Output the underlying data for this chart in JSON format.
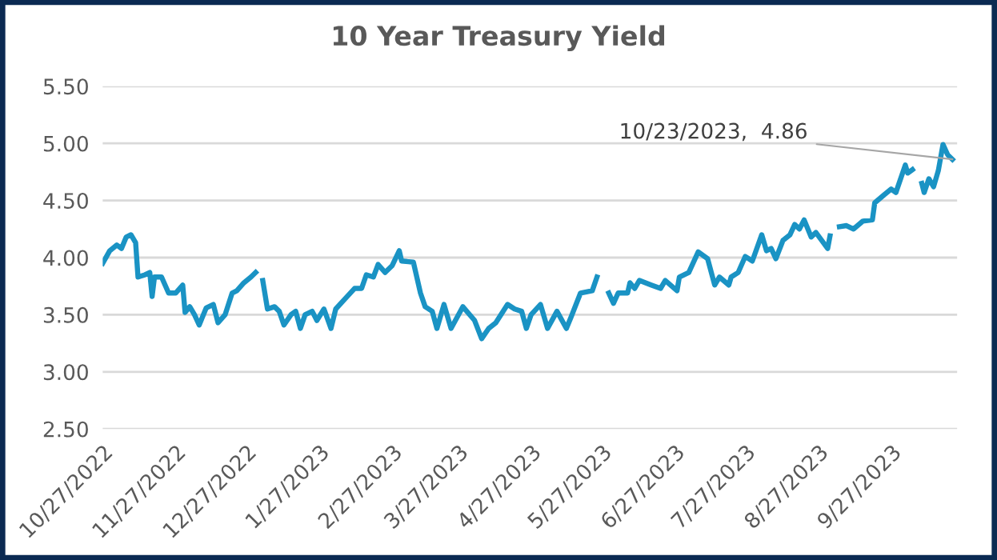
{
  "chart_data": {
    "type": "line",
    "title": "10 Year Treasury Yield",
    "x": [
      "2022-10-27",
      "2022-10-30",
      "2022-11-02",
      "2022-11-04",
      "2022-11-06",
      "2022-11-08",
      "2022-11-10",
      "2022-11-11",
      "2022-11-14",
      "2022-11-16",
      "2022-11-17",
      "2022-11-18",
      "2022-11-21",
      "2022-11-24",
      "2022-11-27",
      "2022-11-30",
      "2022-12-01",
      "2022-12-03",
      "2022-12-05",
      "2022-12-07",
      "2022-12-10",
      "2022-12-13",
      "2022-12-15",
      "2022-12-18",
      "2022-12-21",
      "2022-12-23",
      "2022-12-26",
      "2022-12-29",
      "2022-12-31",
      "2023-01-02",
      "2023-01-03",
      "2023-01-05",
      "2023-01-08",
      "2023-01-10",
      "2023-01-12",
      "2023-01-15",
      "2023-01-17",
      "2023-01-19",
      "2023-01-21",
      "2023-01-24",
      "2023-01-26",
      "2023-01-29",
      "2023-02-01",
      "2023-02-03",
      "2023-02-07",
      "2023-02-11",
      "2023-02-14",
      "2023-02-16",
      "2023-02-19",
      "2023-02-21",
      "2023-02-24",
      "2023-02-27",
      "2023-03-02",
      "2023-03-03",
      "2023-03-08",
      "2023-03-11",
      "2023-03-13",
      "2023-03-16",
      "2023-03-18",
      "2023-03-21",
      "2023-03-24",
      "2023-03-29",
      "2023-04-03",
      "2023-04-06",
      "2023-04-09",
      "2023-04-12",
      "2023-04-17",
      "2023-04-20",
      "2023-04-23",
      "2023-04-25",
      "2023-04-27",
      "2023-05-01",
      "2023-05-04",
      "2023-05-08",
      "2023-05-12",
      "2023-05-14",
      "2023-05-18",
      "2023-05-23",
      "2023-05-25",
      "2023-05-27",
      "2023-05-30",
      "2023-06-01",
      "2023-06-03",
      "2023-06-07",
      "2023-06-08",
      "2023-06-10",
      "2023-06-12",
      "2023-06-17",
      "2023-06-21",
      "2023-06-23",
      "2023-06-28",
      "2023-06-29",
      "2023-07-03",
      "2023-07-07",
      "2023-07-11",
      "2023-07-14",
      "2023-07-16",
      "2023-07-20",
      "2023-07-21",
      "2023-07-24",
      "2023-07-27",
      "2023-07-30",
      "2023-08-03",
      "2023-08-05",
      "2023-08-07",
      "2023-08-09",
      "2023-08-12",
      "2023-08-15",
      "2023-08-17",
      "2023-08-19",
      "2023-08-21",
      "2023-08-24",
      "2023-08-26",
      "2023-08-31",
      "2023-09-01",
      "2023-09-03",
      "2023-09-05",
      "2023-09-08",
      "2023-09-11",
      "2023-09-15",
      "2023-09-19",
      "2023-09-20",
      "2023-09-24",
      "2023-09-27",
      "2023-09-29",
      "2023-10-03",
      "2023-10-04",
      "2023-10-06",
      "2023-10-08",
      "2023-10-10",
      "2023-10-11",
      "2023-10-13",
      "2023-10-15",
      "2023-10-17",
      "2023-10-19",
      "2023-10-21",
      "2023-10-23"
    ],
    "series": [
      {
        "color": "#1a93c4",
        "values": [
          3.95,
          4.06,
          4.11,
          4.08,
          4.18,
          4.2,
          4.13,
          3.83,
          3.85,
          3.87,
          3.66,
          3.83,
          3.83,
          3.69,
          3.69,
          3.76,
          3.52,
          3.57,
          3.5,
          3.41,
          3.56,
          3.59,
          3.43,
          3.5,
          3.69,
          3.71,
          3.78,
          3.83,
          3.87,
          null,
          3.8,
          3.55,
          3.57,
          3.53,
          3.41,
          3.5,
          3.53,
          3.38,
          3.5,
          3.53,
          3.45,
          3.55,
          3.38,
          3.55,
          3.64,
          3.73,
          3.73,
          3.85,
          3.83,
          3.94,
          3.87,
          3.93,
          4.06,
          3.97,
          3.96,
          3.69,
          3.57,
          3.53,
          3.38,
          3.59,
          3.38,
          3.57,
          3.45,
          3.29,
          3.38,
          3.43,
          3.59,
          3.55,
          3.53,
          3.38,
          3.5,
          3.59,
          3.38,
          3.53,
          3.38,
          3.48,
          3.69,
          3.71,
          3.83,
          null,
          3.69,
          3.6,
          3.69,
          3.69,
          3.78,
          3.73,
          3.8,
          3.76,
          3.73,
          3.8,
          3.71,
          3.83,
          3.87,
          4.05,
          3.99,
          3.76,
          3.83,
          3.76,
          3.83,
          3.87,
          4.01,
          3.97,
          4.2,
          4.06,
          4.08,
          3.99,
          4.15,
          4.2,
          4.29,
          4.25,
          4.33,
          4.18,
          4.22,
          4.08,
          4.19,
          null,
          4.27,
          4.28,
          4.25,
          4.32,
          4.33,
          4.48,
          4.55,
          4.6,
          4.57,
          4.81,
          4.74,
          4.77,
          null,
          4.65,
          4.57,
          4.69,
          4.62,
          4.76,
          4.99,
          4.9,
          4.86
        ]
      }
    ],
    "xlim": [
      "2022-10-27",
      "2023-10-25"
    ],
    "xticks": [
      {
        "value": "2022-10-27",
        "label": "10/27/2022"
      },
      {
        "value": "2022-11-27",
        "label": "11/27/2022"
      },
      {
        "value": "2022-12-27",
        "label": "12/27/2022"
      },
      {
        "value": "2023-01-27",
        "label": "1/27/2023"
      },
      {
        "value": "2023-02-27",
        "label": "2/27/2023"
      },
      {
        "value": "2023-03-27",
        "label": "3/27/2023"
      },
      {
        "value": "2023-04-27",
        "label": "4/27/2023"
      },
      {
        "value": "2023-05-27",
        "label": "5/27/2023"
      },
      {
        "value": "2023-06-27",
        "label": "6/27/2023"
      },
      {
        "value": "2023-07-27",
        "label": "7/27/2023"
      },
      {
        "value": "2023-08-27",
        "label": "8/27/2023"
      },
      {
        "value": "2023-09-27",
        "label": "9/27/2023"
      }
    ],
    "ylim": [
      2.5,
      5.5
    ],
    "yticks": [
      {
        "value": 2.5,
        "label": "2.50"
      },
      {
        "value": 3,
        "label": "3.00"
      },
      {
        "value": 3.5,
        "label": "3.50"
      },
      {
        "value": 4,
        "label": "4.00"
      },
      {
        "value": 4.5,
        "label": "4.50"
      },
      {
        "value": 5,
        "label": "5.00"
      },
      {
        "value": 5.5,
        "label": "5.50"
      }
    ],
    "grid": "y",
    "legend": false,
    "marker": "none",
    "line_style": "solid",
    "annotations": [
      {
        "text": "10/23/2023,  4.86",
        "x": "2023-10-23",
        "y": 4.86
      }
    ]
  }
}
